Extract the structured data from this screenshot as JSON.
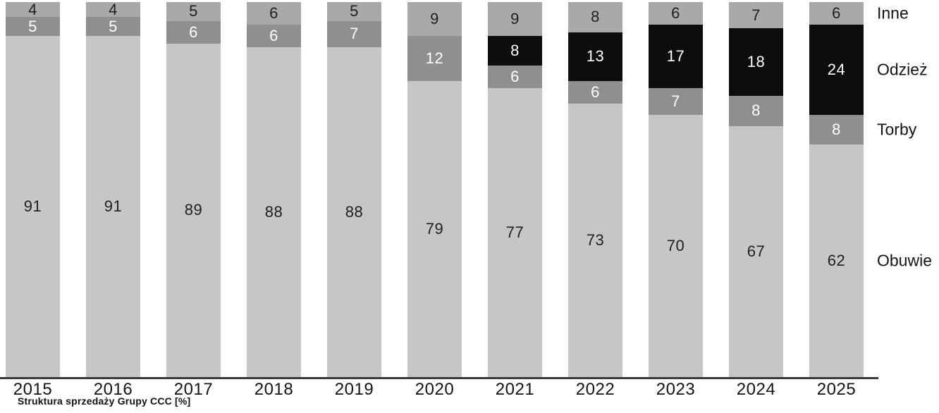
{
  "chart_data": {
    "type": "bar",
    "stacked": true,
    "unit": "%",
    "title": "Struktura sprzedaży Grupy CCC [%]",
    "categories": [
      "2015",
      "2016",
      "2017",
      "2018",
      "2019",
      "2020",
      "2021",
      "2022",
      "2023",
      "2024",
      "2025"
    ],
    "series": [
      {
        "name": "Obuwie",
        "key": "obuwie",
        "color": "#c6c6c6",
        "label_color": "#1f1f1f",
        "values": [
          91,
          91,
          89,
          88,
          88,
          79,
          77,
          73,
          70,
          67,
          62
        ]
      },
      {
        "name": "Torby",
        "key": "torby",
        "color": "#8f8f8f",
        "label_color": "#ffffff",
        "values": [
          5,
          5,
          6,
          6,
          7,
          12,
          6,
          6,
          7,
          8,
          8
        ]
      },
      {
        "name": "Odzież",
        "key": "odziez",
        "color": "#0d0d0d",
        "label_color": "#ffffff",
        "values": [
          0,
          0,
          0,
          0,
          0,
          0,
          8,
          13,
          17,
          18,
          24
        ]
      },
      {
        "name": "Inne",
        "key": "inne",
        "color": "#a9a9a9",
        "label_color": "#1f1f1f",
        "values": [
          4,
          4,
          5,
          6,
          5,
          9,
          9,
          8,
          6,
          7,
          6
        ]
      }
    ],
    "ylim": [
      0,
      100
    ],
    "xlabel": "",
    "ylabel": "",
    "grid": false,
    "legend_position": "right",
    "axis_color": "#3a3a3a"
  }
}
